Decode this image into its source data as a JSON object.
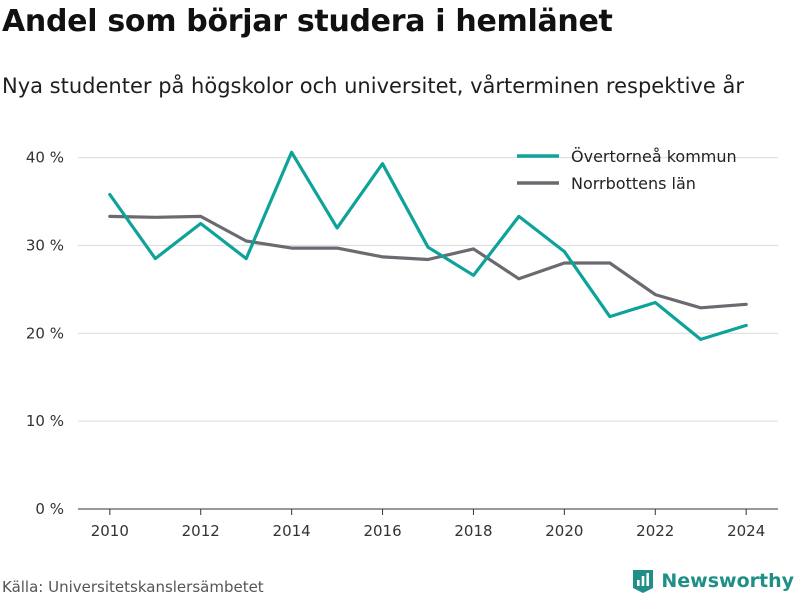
{
  "header": {
    "title": "Andel som börjar studera i hemlänet",
    "subtitle": "Nya studenter på högskolor och universitet, vårterminen respektive år"
  },
  "footer": {
    "source": "Källa: Universitetskanslersämbetet",
    "brand": "Newsworthy",
    "brand_icon": "bar-chart-logo-icon"
  },
  "colors": {
    "series_1": "#0ea39a",
    "series_2": "#6b6a70",
    "grid": "#d9d9d9",
    "axis": "#333333",
    "brand": "#1f8f87"
  },
  "chart_data": {
    "type": "line",
    "x": [
      2010,
      2011,
      2012,
      2013,
      2014,
      2015,
      2016,
      2017,
      2018,
      2019,
      2020,
      2021,
      2022,
      2023,
      2024
    ],
    "xticks": [
      2010,
      2012,
      2014,
      2016,
      2018,
      2020,
      2022,
      2024
    ],
    "xlim": [
      2009.3,
      2024.7
    ],
    "yticks": [
      0,
      10,
      20,
      30,
      40
    ],
    "ytick_labels": [
      "0 %",
      "10 %",
      "20 %",
      "30 %",
      "40 %"
    ],
    "ylim": [
      0,
      42
    ],
    "grid": "horizontal",
    "legend_position": "top-right",
    "series": [
      {
        "name": "Övertorneå kommun",
        "color": "#0ea39a",
        "values": [
          35.8,
          28.5,
          32.5,
          28.5,
          40.6,
          32.0,
          39.3,
          29.8,
          26.6,
          33.3,
          29.3,
          21.9,
          23.5,
          19.3,
          20.9
        ]
      },
      {
        "name": "Norrbottens län",
        "color": "#6b6a70",
        "values": [
          33.3,
          33.2,
          33.3,
          30.5,
          29.7,
          29.7,
          28.7,
          28.4,
          29.6,
          26.2,
          28.0,
          28.0,
          24.4,
          22.9,
          23.3
        ]
      }
    ]
  }
}
